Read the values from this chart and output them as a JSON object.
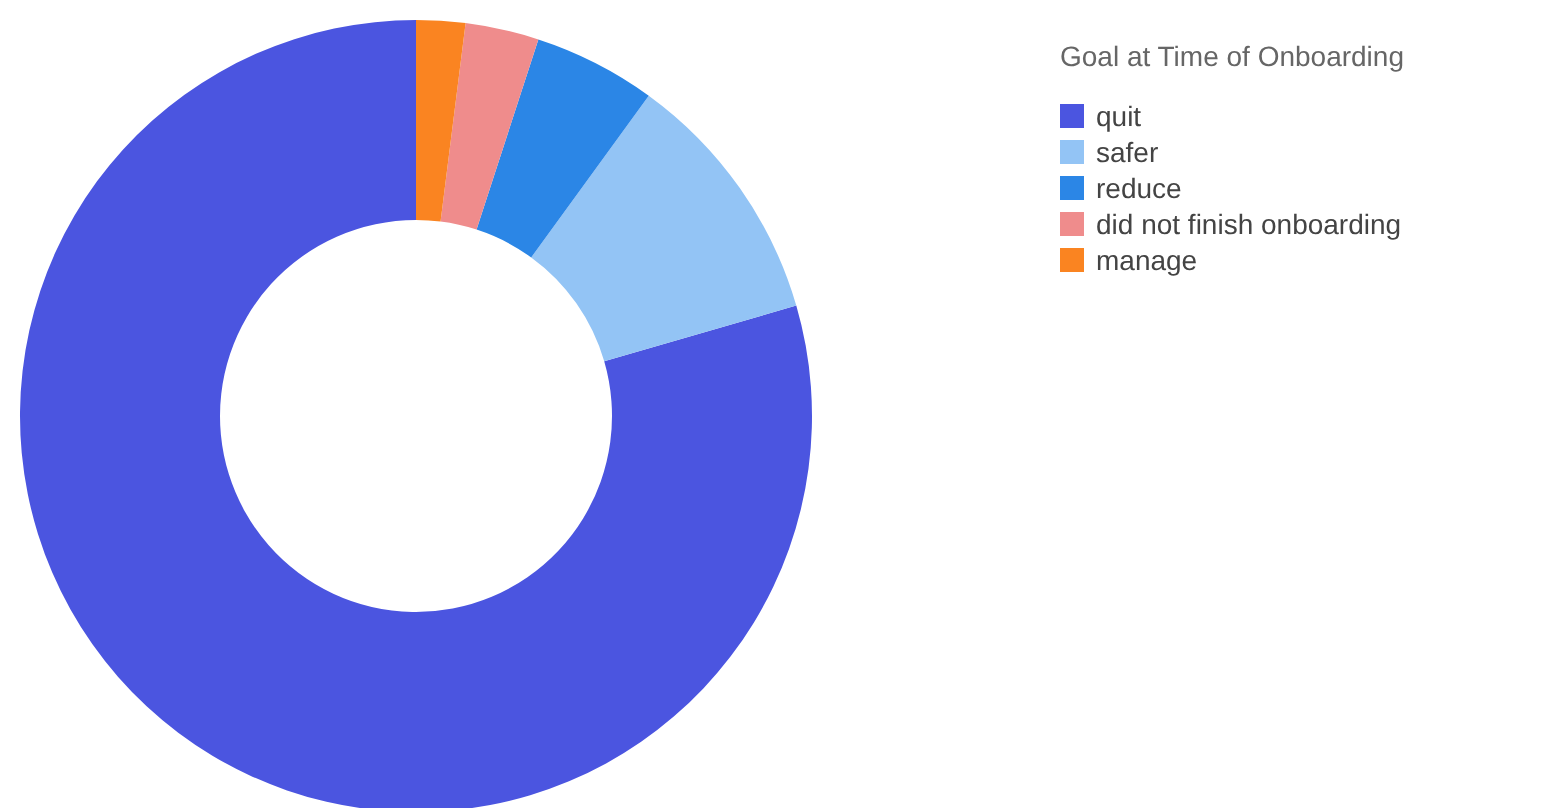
{
  "chart_data": {
    "type": "donut",
    "legend_title": "Goal at Time of Onboarding",
    "categories": [
      "quit",
      "safer",
      "reduce",
      "did not finish onboarding",
      "manage"
    ],
    "values": [
      79.5,
      10.5,
      5,
      3,
      2
    ],
    "colors": [
      "#4b55e0",
      "#93c4f5",
      "#2b86e6",
      "#ef8c8c",
      "#fa8421"
    ],
    "legend": "top right"
  }
}
